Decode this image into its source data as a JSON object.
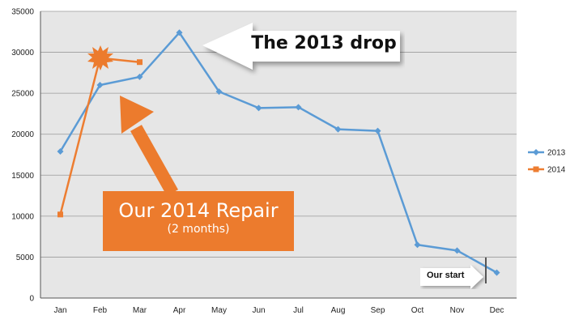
{
  "chart_data": {
    "type": "line",
    "categories": [
      "Jan",
      "Feb",
      "Mar",
      "Apr",
      "May",
      "Jun",
      "Jul",
      "Aug",
      "Sep",
      "Oct",
      "Nov",
      "Dec"
    ],
    "series": [
      {
        "name": "2013",
        "color": "#5b9bd5",
        "marker": "diamond",
        "values": [
          17900,
          26000,
          27000,
          32400,
          25200,
          23200,
          23300,
          20600,
          20400,
          6500,
          5800,
          3100
        ]
      },
      {
        "name": "2014",
        "color": "#ed7d31",
        "marker": "square",
        "values": [
          10200,
          29300,
          28800,
          null,
          null,
          null,
          null,
          null,
          null,
          null,
          null,
          null
        ]
      }
    ],
    "ylim": [
      0,
      35000
    ],
    "yticks": [
      "0",
      "5000",
      "10000",
      "15000",
      "20000",
      "25000",
      "30000",
      "35000"
    ],
    "grid": true,
    "legend_position": "right",
    "plot_background": "#e6e6e6"
  },
  "annotations": {
    "drop_label": "The 2013 drop",
    "repair_title": "Our 2014 Repair",
    "repair_subtitle": "(2 months)",
    "start_label": "Our start"
  }
}
